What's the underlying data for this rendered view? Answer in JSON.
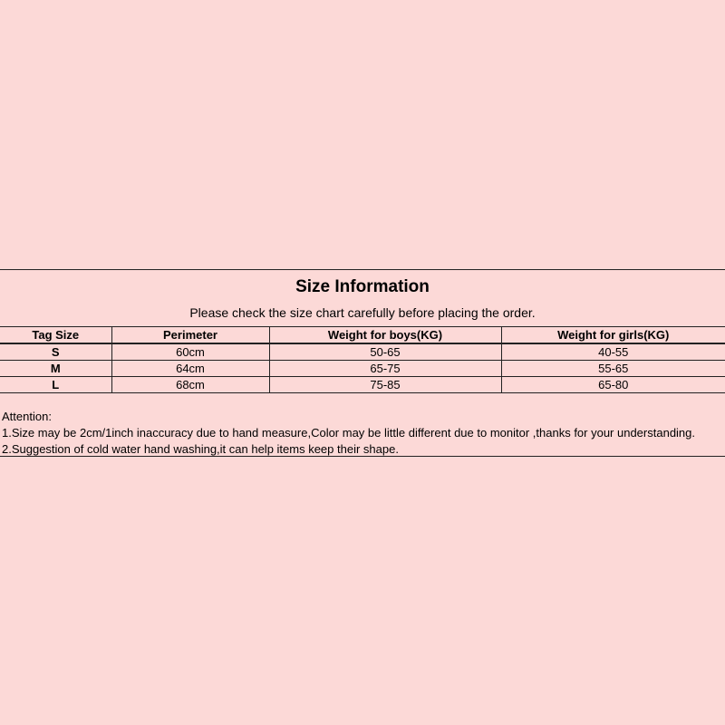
{
  "title": "Size Information",
  "subtitle": "Please check the size chart carefully before placing the order.",
  "table": {
    "headers": [
      "Tag Size",
      "Perimeter",
      "Weight for boys(KG)",
      "Weight for girls(KG)"
    ],
    "rows": [
      [
        "S",
        "60cm",
        "50-65",
        "40-55"
      ],
      [
        "M",
        "64cm",
        "65-75",
        "55-65"
      ],
      [
        "L",
        "68cm",
        "75-85",
        "65-80"
      ]
    ]
  },
  "notes": {
    "heading": "Attention:",
    "items": [
      "1.Size may be 2cm/1inch inaccuracy due to hand measure,Color may be little different due to monitor ,thanks for your understanding.",
      "2.Suggestion of cold water hand washing,it can help items keep their shape."
    ]
  }
}
